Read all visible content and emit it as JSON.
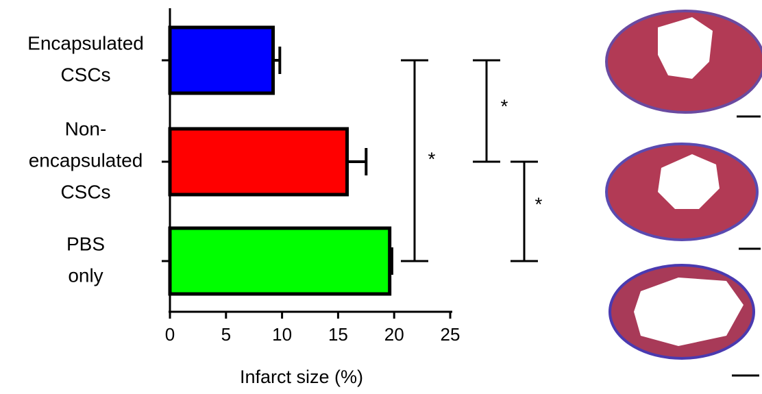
{
  "chart_data": {
    "type": "barh",
    "categories": [
      [
        "Encapsulated",
        "CSCs"
      ],
      [
        "Non-",
        "encapsulated",
        "CSCs"
      ],
      [
        "PBS",
        "only"
      ]
    ],
    "values": [
      9.2,
      15.8,
      19.6
    ],
    "errors": [
      0.6,
      1.7,
      0.2
    ],
    "colors": [
      "#0000ff",
      "#ff0000",
      "#00ff00"
    ],
    "xlabel": "Infarct size (%)",
    "xlim": [
      0,
      25
    ],
    "xticks": [
      0,
      5,
      10,
      15,
      20,
      25
    ],
    "annotations": [
      "*",
      "*",
      "*"
    ]
  }
}
